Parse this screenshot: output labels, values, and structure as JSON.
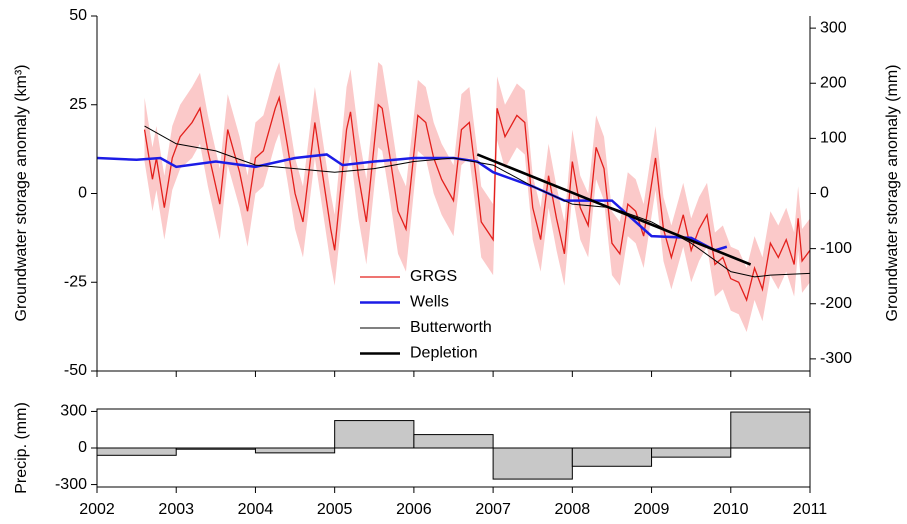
{
  "chart_data": [
    {
      "type": "line",
      "ylabel": "Groundwater storage anomaly (km³)",
      "y2label": "Groundwater storage anomaly (mm)",
      "xlim": [
        2002,
        2011
      ],
      "ylim": [
        -50,
        50
      ],
      "yticks": [
        -50,
        -25,
        0,
        25,
        50
      ],
      "y2lim": [
        -322,
        322
      ],
      "y2ticks": [
        -300,
        -200,
        -100,
        0,
        100,
        200,
        300
      ],
      "legend": "lower-center",
      "band_color": "#fbc9c9",
      "series": [
        {
          "name": "GRGS",
          "color": "#e3201c",
          "width": 1.3,
          "x": [
            2002.6,
            2002.7,
            2002.75,
            2002.85,
            2002.95,
            2003.05,
            2003.2,
            2003.3,
            2003.4,
            2003.5,
            2003.55,
            2003.65,
            2003.8,
            2003.9,
            2004.0,
            2004.1,
            2004.25,
            2004.3,
            2004.4,
            2004.5,
            2004.6,
            2004.75,
            2004.85,
            2004.95,
            2005.0,
            2005.15,
            2005.2,
            2005.3,
            2005.4,
            2005.55,
            2005.6,
            2005.7,
            2005.8,
            2005.9,
            2006.05,
            2006.15,
            2006.25,
            2006.35,
            2006.5,
            2006.6,
            2006.7,
            2006.8,
            2006.85,
            2007.0,
            2007.05,
            2007.15,
            2007.3,
            2007.4,
            2007.5,
            2007.6,
            2007.7,
            2007.8,
            2007.9,
            2008.0,
            2008.1,
            2008.2,
            2008.3,
            2008.4,
            2008.5,
            2008.6,
            2008.7,
            2008.8,
            2008.9,
            2009.05,
            2009.15,
            2009.25,
            2009.4,
            2009.5,
            2009.6,
            2009.7,
            2009.8,
            2009.9,
            2010.0,
            2010.1,
            2010.2,
            2010.3,
            2010.4,
            2010.5,
            2010.6,
            2010.7,
            2010.8,
            2010.85,
            2010.9,
            2011.0
          ],
          "values": [
            18,
            4,
            10,
            -4,
            10,
            16,
            20,
            24,
            12,
            2,
            -3,
            18,
            6,
            -5,
            10,
            12,
            24,
            27,
            14,
            0,
            -8,
            20,
            5,
            -10,
            -16,
            18,
            23,
            5,
            -8,
            25,
            24,
            10,
            -5,
            -10,
            22,
            20,
            10,
            4,
            -2,
            18,
            20,
            2,
            -8,
            -13,
            24,
            16,
            22,
            20,
            -4,
            -13,
            5,
            -7,
            -17,
            9,
            -4,
            -9,
            13,
            7,
            -14,
            -17,
            -3,
            -5,
            -12,
            10,
            -10,
            -18,
            -6,
            -16,
            -10,
            -6,
            -20,
            -18,
            -24,
            -25,
            -30,
            -21,
            -27,
            -14,
            -18,
            -13,
            -20,
            -7,
            -19,
            -16
          ],
          "error": [
            9,
            9,
            9,
            9,
            9,
            9,
            10,
            10,
            10,
            10,
            10,
            10,
            10,
            10,
            10,
            10,
            10,
            10,
            10,
            10,
            10,
            10,
            10,
            10,
            10,
            12,
            12,
            12,
            12,
            12,
            12,
            12,
            12,
            12,
            10,
            10,
            10,
            10,
            10,
            10,
            10,
            10,
            10,
            10,
            9,
            9,
            9,
            9,
            9,
            9,
            9,
            9,
            9,
            9,
            9,
            9,
            9,
            9,
            9,
            9,
            9,
            9,
            9,
            9,
            9,
            9,
            9,
            9,
            9,
            9,
            9,
            9,
            9,
            9,
            9,
            9,
            9,
            9,
            9,
            9,
            9,
            9,
            9,
            9
          ]
        },
        {
          "name": "Wells",
          "color": "#1c1ce6",
          "width": 2.5,
          "x": [
            2002.0,
            2002.5,
            2002.8,
            2003.0,
            2003.5,
            2004.0,
            2004.5,
            2004.9,
            2005.1,
            2005.5,
            2006.0,
            2006.5,
            2006.8,
            2007.0,
            2007.5,
            2007.9,
            2008.5,
            2009.0,
            2009.5,
            2009.8,
            2009.95
          ],
          "values": [
            10,
            9.5,
            10,
            7.5,
            9,
            7.5,
            10,
            11,
            8,
            9,
            10,
            10,
            9,
            6,
            2,
            -2,
            -2,
            -12,
            -12.5,
            -16,
            -15
          ]
        },
        {
          "name": "Butterworth",
          "color": "#000000",
          "width": 1,
          "x": [
            2002.6,
            2003.0,
            2003.5,
            2004.0,
            2004.5,
            2005.0,
            2005.5,
            2006.0,
            2006.5,
            2007.0,
            2007.5,
            2008.0,
            2008.5,
            2009.0,
            2009.5,
            2010.0,
            2010.3,
            2010.5,
            2011.0
          ],
          "values": [
            19,
            14,
            12,
            8,
            7,
            6,
            7,
            9,
            10,
            8,
            2,
            -3,
            -4,
            -8,
            -14,
            -22,
            -23.5,
            -23,
            -22.5
          ]
        },
        {
          "name": "Depletion",
          "color": "#000000",
          "width": 2.6,
          "x": [
            2006.8,
            2010.25
          ],
          "values": [
            11,
            -20
          ]
        }
      ]
    },
    {
      "type": "histogram",
      "ylabel": "Precip. (mm)",
      "xlim": [
        2002,
        2011
      ],
      "xticks": [
        2002,
        2003,
        2004,
        2005,
        2006,
        2007,
        2008,
        2009,
        2010,
        2011
      ],
      "ylim": [
        -320,
        320
      ],
      "yticks": [
        -300,
        0,
        300
      ],
      "color": "#c8c8c8",
      "bins": [
        2002,
        2003,
        2004,
        2005,
        2006,
        2007,
        2008,
        2009,
        2010,
        2011
      ],
      "values": [
        -60,
        -10,
        -40,
        225,
        110,
        -255,
        -150,
        -75,
        295
      ]
    }
  ]
}
